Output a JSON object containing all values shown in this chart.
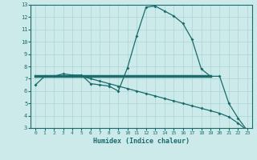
{
  "title": "",
  "xlabel": "Humidex (Indice chaleur)",
  "ylabel": "",
  "bg_color": "#cceaea",
  "line_color": "#1a6b6b",
  "ylim": [
    3,
    13
  ],
  "xlim": [
    -0.5,
    23.5
  ],
  "yticks": [
    3,
    4,
    5,
    6,
    7,
    8,
    9,
    10,
    11,
    12,
    13
  ],
  "xticks": [
    0,
    1,
    2,
    3,
    4,
    5,
    6,
    7,
    8,
    9,
    10,
    11,
    12,
    13,
    14,
    15,
    16,
    17,
    18,
    19,
    20,
    21,
    22,
    23
  ],
  "curve1_x": [
    0,
    1,
    2,
    3,
    4,
    5,
    6,
    7,
    8,
    9,
    10,
    11,
    12,
    13,
    14,
    15,
    16,
    17,
    18,
    19,
    20,
    21,
    22,
    23
  ],
  "curve1_y": [
    6.5,
    7.2,
    7.2,
    7.4,
    7.3,
    7.3,
    6.6,
    6.5,
    6.4,
    6.0,
    7.9,
    10.5,
    12.8,
    12.9,
    12.5,
    12.1,
    11.5,
    10.2,
    7.8,
    7.2,
    7.2,
    5.0,
    3.8,
    2.8
  ],
  "curve2_x": [
    0,
    19
  ],
  "curve2_y": [
    7.2,
    7.2
  ],
  "curve3_x": [
    4,
    5,
    6,
    7,
    8,
    9,
    10,
    11,
    12,
    13,
    14,
    15,
    16,
    17,
    18,
    19,
    20,
    21,
    22,
    23
  ],
  "curve3_y": [
    7.2,
    7.2,
    7.0,
    6.8,
    6.6,
    6.4,
    6.2,
    6.0,
    5.8,
    5.6,
    5.4,
    5.2,
    5.0,
    4.8,
    4.6,
    4.4,
    4.2,
    3.9,
    3.4,
    2.8
  ]
}
